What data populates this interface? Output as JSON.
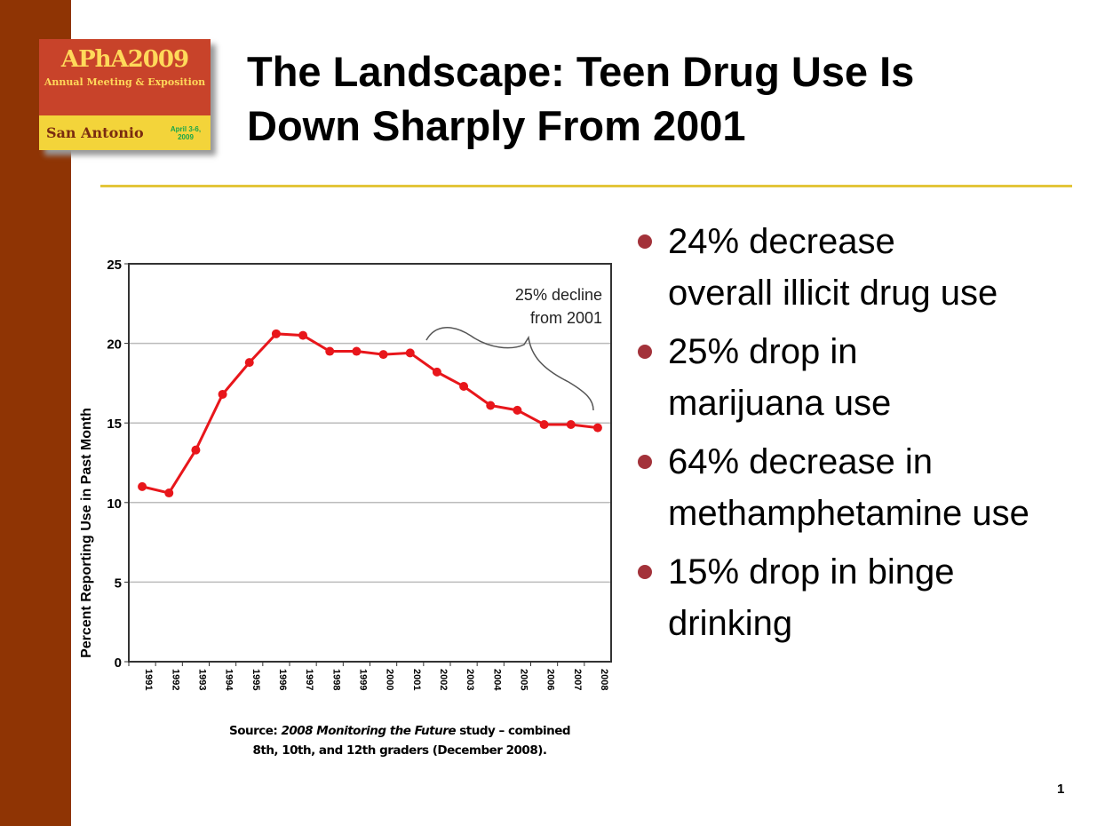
{
  "slide": {
    "title_line1": "The Landscape: Teen Drug Use Is",
    "title_line2": "Down Sharply From 2001",
    "page_number": "1",
    "accent_color": "#e3c53a",
    "sidebar_color": "#8f3404"
  },
  "logo": {
    "name": "APhA2009",
    "subtitle": "Annual Meeting & Exposition",
    "city": "San Antonio",
    "dates": "April 3-6, 2009"
  },
  "bullets": [
    {
      "text": "24% decrease overall illicit drug use"
    },
    {
      "text": "25% drop in marijuana use"
    },
    {
      "text": "64% decrease in methamphetamine use"
    },
    {
      "text": "15% drop in binge drinking"
    }
  ],
  "source": {
    "prefix": "Source: ",
    "study": "2008 Monitoring the Future",
    "rest": " study – combined",
    "line2": "8th, 10th, and 12th graders (December 2008)."
  },
  "chart_data": {
    "type": "line",
    "ylabel": "Percent Reporting Use in Past Month",
    "xlabel": "",
    "ylim": [
      0,
      25
    ],
    "yticks": [
      0,
      5,
      10,
      15,
      20,
      25
    ],
    "grid": true,
    "categories": [
      "1991",
      "1992",
      "1993",
      "1994",
      "1995",
      "1996",
      "1997",
      "1998",
      "1999",
      "2000",
      "2001",
      "2002",
      "2003",
      "2004",
      "2005",
      "2006",
      "2007",
      "2008"
    ],
    "series": [
      {
        "color": "#e8161b",
        "values": [
          11.0,
          10.6,
          13.3,
          16.8,
          18.8,
          20.6,
          20.5,
          19.5,
          19.5,
          19.3,
          19.4,
          18.2,
          17.3,
          16.1,
          15.8,
          14.9,
          14.9,
          14.7
        ]
      }
    ],
    "annotation": {
      "line1": "25% decline",
      "line2": "from 2001"
    }
  }
}
